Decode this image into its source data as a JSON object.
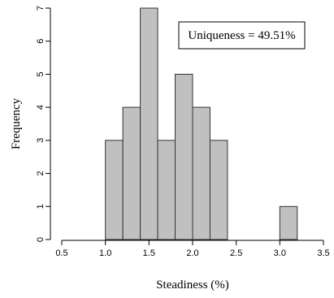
{
  "chart_data": {
    "type": "bar",
    "subtype": "histogram",
    "xlabel": "Steadiness (%)",
    "ylabel": "Frequency",
    "xlim": [
      0.5,
      3.5
    ],
    "ylim": [
      0,
      7
    ],
    "x_ticks": [
      "0.5",
      "1.0",
      "1.5",
      "2.0",
      "2.5",
      "3.0",
      "3.5"
    ],
    "y_ticks": [
      "0",
      "1",
      "2",
      "3",
      "4",
      "5",
      "6",
      "7"
    ],
    "bins": [
      {
        "start": 1.0,
        "end": 1.2,
        "count": 3
      },
      {
        "start": 1.2,
        "end": 1.4,
        "count": 4
      },
      {
        "start": 1.4,
        "end": 1.6,
        "count": 7
      },
      {
        "start": 1.6,
        "end": 1.8,
        "count": 3
      },
      {
        "start": 1.8,
        "end": 2.0,
        "count": 5
      },
      {
        "start": 2.0,
        "end": 2.2,
        "count": 4
      },
      {
        "start": 2.2,
        "end": 2.4,
        "count": 3
      },
      {
        "start": 2.4,
        "end": 2.6,
        "count": 0
      },
      {
        "start": 2.6,
        "end": 2.8,
        "count": 0
      },
      {
        "start": 2.8,
        "end": 3.0,
        "count": 0
      },
      {
        "start": 3.0,
        "end": 3.2,
        "count": 1
      }
    ],
    "annotation": "Uniqueness = 49.51%",
    "annotation_position": "top-right",
    "grid": false,
    "bar_color": "#c0c0c0",
    "bar_border_color": "#333333"
  }
}
